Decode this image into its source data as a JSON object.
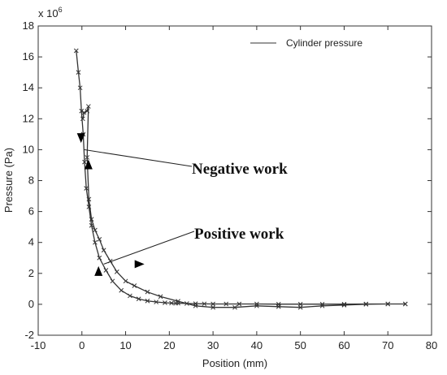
{
  "chart_data": {
    "type": "line",
    "xlabel": "Position (mm)",
    "ylabel": "Pressure (Pa)",
    "y_multiplier": "x 10",
    "y_multiplier_exponent": "6",
    "xlim": [
      -10,
      80
    ],
    "ylim": [
      -2,
      18
    ],
    "xticks": [
      -10,
      0,
      10,
      20,
      30,
      40,
      50,
      60,
      70,
      80
    ],
    "yticks": [
      -2,
      0,
      2,
      4,
      6,
      8,
      10,
      12,
      14,
      16,
      18
    ],
    "grid": false,
    "legend": {
      "position": "top-right",
      "entries": [
        "Cylinder pressure"
      ]
    },
    "series": [
      {
        "name": "Cylinder pressure",
        "color": "#333333",
        "marker": "x",
        "x": [
          -1.3,
          -0.8,
          -0.4,
          -0.1,
          0.3,
          0.6,
          1.0,
          1.6,
          2.2,
          3.0,
          4.0,
          5.5,
          7.0,
          9.0,
          11.0,
          13.0,
          15.0,
          17.0,
          19.0,
          20.5,
          21.5,
          22.0,
          24.0,
          26.0,
          28.0,
          30.0,
          33.0,
          36.0,
          40.0,
          45.0,
          50.0,
          55.0,
          60.0,
          65.0,
          70.0,
          74.0,
          74.0,
          70.0,
          65.0,
          60.0,
          55.0,
          50.0,
          45.0,
          40.0,
          35.0,
          30.0,
          26.0,
          22.0,
          18.0,
          15.0,
          12.0,
          10.0,
          8.0,
          6.5,
          5.0,
          4.0,
          3.0,
          2.2,
          1.6,
          1.2,
          1.5,
          1.2,
          0.5,
          0.2
        ],
        "y": [
          16.4,
          15.0,
          14.0,
          12.5,
          11.0,
          9.2,
          7.5,
          6.3,
          5.1,
          4.0,
          3.0,
          2.2,
          1.5,
          0.9,
          0.55,
          0.35,
          0.22,
          0.15,
          0.1,
          0.08,
          0.07,
          0.07,
          0.05,
          0.04,
          0.03,
          0.02,
          0.02,
          0.02,
          0.02,
          0.01,
          0.01,
          0.01,
          0.01,
          0.02,
          0.02,
          0.02,
          0.02,
          0.02,
          0.0,
          -0.05,
          -0.1,
          -0.2,
          -0.15,
          -0.1,
          -0.2,
          -0.2,
          -0.1,
          0.2,
          0.5,
          0.8,
          1.2,
          1.5,
          2.1,
          2.8,
          3.5,
          4.2,
          4.8,
          5.5,
          6.8,
          9.5,
          12.8,
          12.5,
          12.4,
          12.0
        ]
      }
    ],
    "annotations": [
      {
        "text": "Negative work",
        "target": [
          0.5,
          10.0
        ]
      },
      {
        "text": "Positive work",
        "target": [
          5.0,
          2.6
        ]
      }
    ],
    "direction_arrows": [
      {
        "x": -0.2,
        "y": 10.8,
        "direction": "down"
      },
      {
        "x": 1.5,
        "y": 9.0,
        "direction": "up"
      },
      {
        "x": 3.8,
        "y": 2.1,
        "direction": "up"
      },
      {
        "x": 13.0,
        "y": 2.6,
        "direction": "right"
      }
    ]
  }
}
